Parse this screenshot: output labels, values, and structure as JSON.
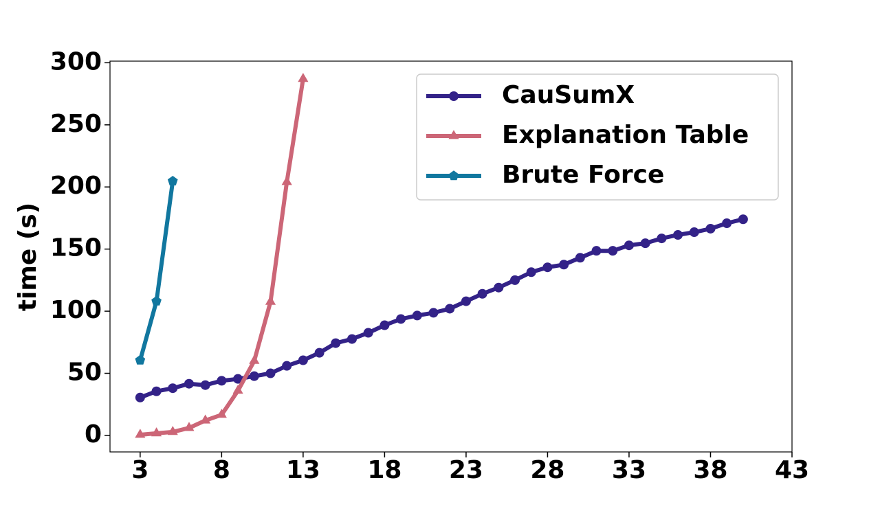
{
  "chart_data": {
    "type": "line",
    "y_label": "time (s)",
    "xlim": [
      1.15,
      43
    ],
    "xticks": [
      3,
      8,
      13,
      18,
      23,
      28,
      33,
      38,
      43
    ],
    "ylim": [
      -13.3,
      301.3
    ],
    "yticks": [
      0,
      50,
      100,
      150,
      200,
      250,
      300
    ],
    "legend": "upper right",
    "series": [
      {
        "name": "CauSumX",
        "color": "#332288",
        "marker": "circle",
        "x": [
          3,
          4,
          5,
          6,
          7,
          8,
          9,
          10,
          11,
          12,
          13,
          14,
          15,
          16,
          17,
          18,
          19,
          20,
          21,
          22,
          23,
          24,
          25,
          26,
          27,
          28,
          29,
          30,
          31,
          32,
          33,
          34,
          35,
          36,
          37,
          38,
          39,
          40
        ],
        "values": [
          30.5,
          35.5,
          38,
          41.6,
          40.5,
          44,
          45.5,
          47.7,
          50,
          56,
          60.5,
          66.5,
          74.3,
          77.6,
          82.6,
          88.7,
          93.7,
          96.5,
          98.7,
          102,
          108,
          114,
          119,
          125,
          131.4,
          135.3,
          137.5,
          143,
          148.6,
          148.6,
          153,
          154.7,
          158.6,
          161.4,
          163.6,
          166.4,
          170.8,
          174
        ]
      },
      {
        "name": "Explanation Table",
        "color": "#CC6677",
        "marker": "triangle",
        "x": [
          3,
          4,
          5,
          6,
          7,
          8,
          9,
          10,
          11,
          12,
          13
        ],
        "values": [
          0.5,
          1.7,
          2.8,
          6,
          12,
          16.6,
          36,
          60,
          107.6,
          204,
          287
        ]
      },
      {
        "name": "Brute Force",
        "color": "#11779F",
        "marker": "pentagon",
        "x": [
          3,
          4,
          5
        ],
        "values": [
          60.5,
          108,
          204.7
        ]
      }
    ]
  }
}
